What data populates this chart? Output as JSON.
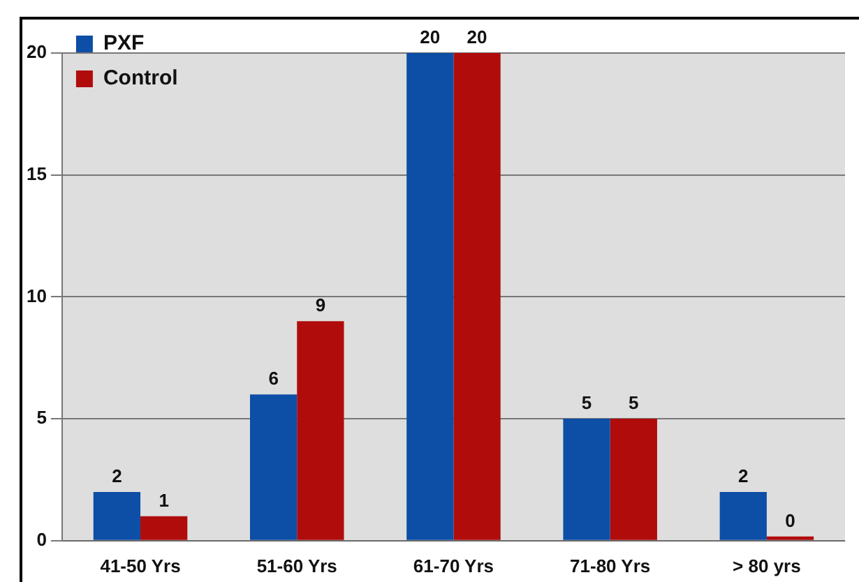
{
  "chart_data": {
    "type": "bar",
    "categories": [
      "41-50 Yrs",
      "51-60 Yrs",
      "61-70 Yrs",
      "71-80 Yrs",
      "> 80 yrs"
    ],
    "series": [
      {
        "name": "PXF",
        "color": "#0d4ea6",
        "values": [
          2,
          6,
          20,
          5,
          2
        ]
      },
      {
        "name": "Control",
        "color": "#b00c0c",
        "values": [
          1,
          9,
          20,
          5,
          0
        ]
      }
    ],
    "ylim": [
      0,
      20
    ],
    "yticks": [
      0,
      5,
      10,
      15,
      20
    ],
    "grid": "y",
    "legend": "top left",
    "data_labels": true
  }
}
